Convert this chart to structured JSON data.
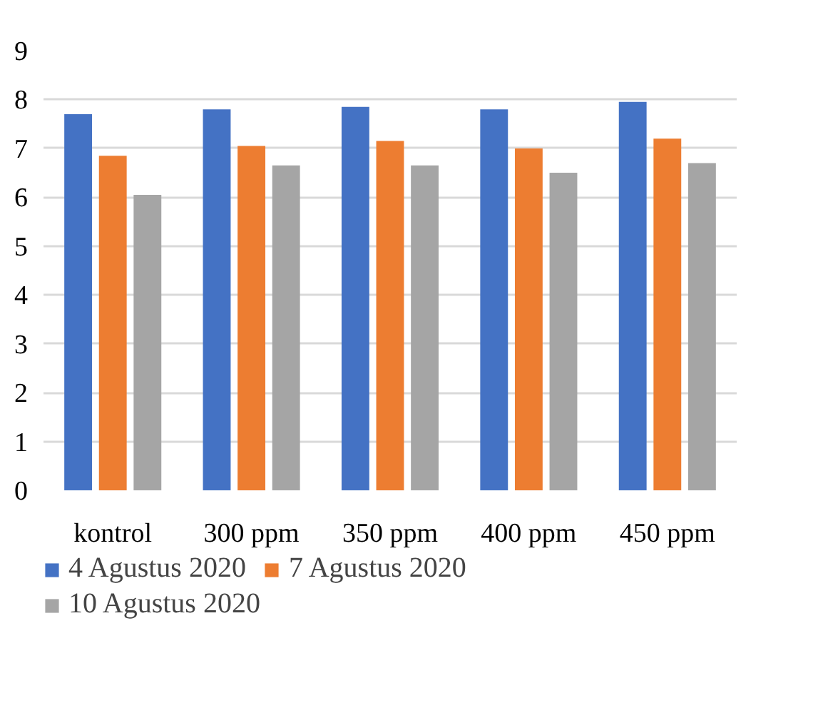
{
  "chart_data": {
    "type": "bar",
    "categories": [
      "kontrol",
      "300 ppm",
      "350 ppm",
      "400 ppm",
      "450 ppm"
    ],
    "series": [
      {
        "name": "4 Agustus 2020",
        "color": "#4472c4",
        "values": [
          7.7,
          7.8,
          7.85,
          7.8,
          7.95
        ]
      },
      {
        "name": "7 Agustus 2020",
        "color": "#ed7d31",
        "values": [
          6.85,
          7.05,
          7.15,
          7.0,
          7.2
        ]
      },
      {
        "name": "10 Agustus 2020",
        "color": "#a5a5a5",
        "values": [
          6.05,
          6.65,
          6.65,
          6.5,
          6.7
        ]
      }
    ],
    "ylim": [
      0,
      9
    ],
    "yticks": [
      0,
      1,
      2,
      3,
      4,
      5,
      6,
      7,
      8,
      9
    ],
    "grid": "y",
    "legend": "bottom"
  }
}
